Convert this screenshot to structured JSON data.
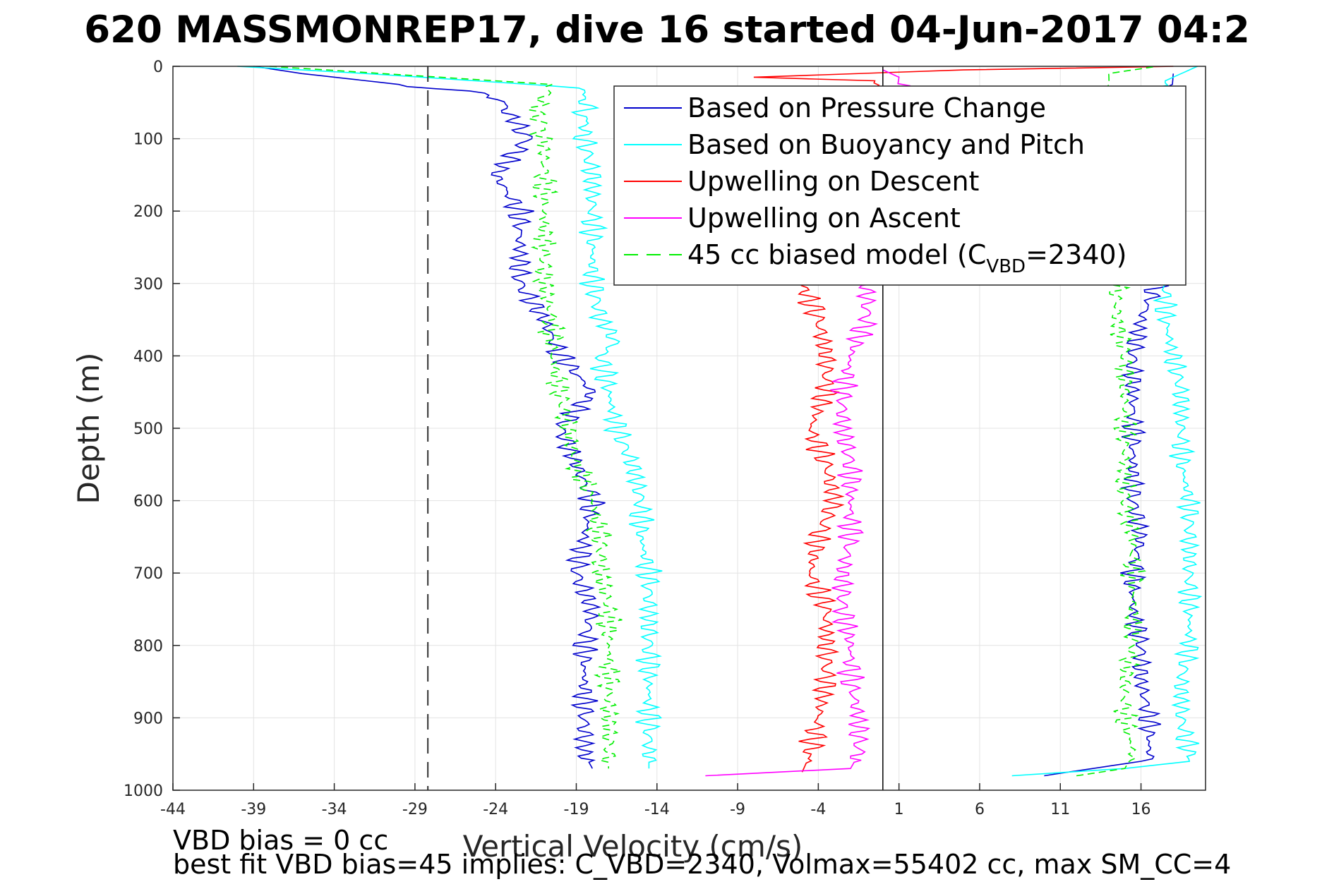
{
  "chart_data": {
    "type": "line",
    "title": "620 MASSMONREP17, dive 16 started 04-Jun-2017 04:2",
    "xlabel": "Vertical Velocity (cm/s)",
    "ylabel": "Depth (m)",
    "xlim": [
      -44,
      20
    ],
    "ylim": [
      0,
      1000
    ],
    "y_reversed": true,
    "grid": true,
    "legend_position": "top-right",
    "x_ticks": [
      "-44",
      "-39",
      "-34",
      "-29",
      "-24",
      "-19",
      "-14",
      "-9",
      "-4",
      "1",
      "6",
      "11",
      "16"
    ],
    "y_ticks": [
      "0",
      "100",
      "200",
      "300",
      "400",
      "500",
      "600",
      "700",
      "800",
      "900",
      "1000"
    ],
    "reference_lines": {
      "dashed_x": -28.2,
      "solid_x": 0
    },
    "series": [
      {
        "name": "Based on Pressure Change",
        "color": "#0000cc",
        "style": "solid",
        "descent_depth": [
          0,
          10,
          40,
          70,
          100,
          150,
          200,
          250,
          300,
          350,
          400,
          450,
          500,
          550,
          600,
          650,
          700,
          750,
          800,
          850,
          900,
          950,
          970
        ],
        "descent_value": [
          -39,
          -36,
          -24,
          -23,
          -22,
          -24,
          -22.5,
          -22.5,
          -22.5,
          -21,
          -20,
          -18,
          -20,
          -19,
          -18,
          -18.5,
          -19,
          -18,
          -18.5,
          -18.5,
          -18.5,
          -18.5,
          -18
        ],
        "ascent_depth": [
          980,
          960,
          950,
          900,
          850,
          800,
          750,
          700,
          650,
          600,
          550,
          500,
          450,
          400,
          350,
          300,
          10
        ],
        "ascent_value": [
          10,
          16,
          16.5,
          16.5,
          16,
          16,
          15.5,
          15.5,
          16,
          15.5,
          15.5,
          15.5,
          15.5,
          15.5,
          16,
          17,
          18
        ]
      },
      {
        "name": "Based on Buoyancy and Pitch",
        "color": "#00ffff",
        "style": "solid",
        "descent_depth": [
          0,
          10,
          30,
          100,
          150,
          200,
          250,
          300,
          350,
          380,
          400,
          450,
          500,
          550,
          600,
          650,
          700,
          750,
          800,
          850,
          900,
          950,
          970
        ],
        "descent_value": [
          -40,
          -32,
          -18.5,
          -18.5,
          -18,
          -18,
          -18,
          -18,
          -17.5,
          -16.5,
          -17.5,
          -17,
          -16.5,
          -15.5,
          -15,
          -15,
          -14.5,
          -14.5,
          -14.5,
          -14.5,
          -14.5,
          -14.5,
          -14.5
        ],
        "ascent_depth": [
          980,
          970,
          960,
          950,
          900,
          850,
          800,
          750,
          700,
          650,
          600,
          550,
          500,
          450,
          400,
          350,
          300,
          20,
          0
        ],
        "ascent_value": [
          8,
          15,
          19,
          19,
          18.5,
          18.5,
          19,
          19,
          19,
          19,
          19,
          18.5,
          18.5,
          18.5,
          18,
          17.5,
          17.5,
          17.5,
          19.5
        ]
      },
      {
        "name": "Upwelling on Descent",
        "color": "#ff0000",
        "style": "solid",
        "depth": [
          0,
          5,
          15,
          20,
          300,
          350,
          400,
          450,
          500,
          550,
          600,
          650,
          700,
          750,
          800,
          850,
          900,
          950,
          975
        ],
        "value": [
          18,
          5,
          -8,
          -0.5,
          -5,
          -4,
          -3.5,
          -3.5,
          -4.5,
          -3.5,
          -3,
          -4,
          -4.5,
          -3.5,
          -3.5,
          -3.5,
          -4,
          -4.5,
          -5
        ]
      },
      {
        "name": "Upwelling on Ascent",
        "color": "#ff00ff",
        "style": "solid",
        "depth": [
          980,
          970,
          950,
          900,
          850,
          800,
          750,
          700,
          650,
          600,
          550,
          500,
          450,
          400,
          350,
          300,
          15,
          5
        ],
        "value": [
          -11,
          -2,
          -1.5,
          -1.5,
          -2,
          -2,
          -2.5,
          -2.5,
          -2,
          -2,
          -2,
          -2.5,
          -2.5,
          -2,
          -1,
          -1,
          1,
          0
        ]
      },
      {
        "name": "45 cc biased model (C_VBD=2340)",
        "color": "#00ee00",
        "style": "dashed",
        "descent_depth": [
          0,
          10,
          25,
          60,
          100,
          150,
          200,
          250,
          300,
          350,
          400,
          450,
          500,
          550,
          600,
          650,
          700,
          750,
          800,
          850,
          900,
          950,
          970
        ],
        "descent_value": [
          -38,
          -31,
          -20.5,
          -21.5,
          -21,
          -21,
          -21,
          -21,
          -21,
          -20.5,
          -20.5,
          -20,
          -19.5,
          -19,
          -18,
          -17.5,
          -17.5,
          -17,
          -17,
          -17,
          -17,
          -17,
          -17
        ],
        "ascent_depth": [
          980,
          970,
          950,
          900,
          850,
          800,
          750,
          700,
          650,
          600,
          550,
          500,
          450,
          400,
          350,
          300,
          10,
          0
        ],
        "ascent_value": [
          12,
          15,
          15.5,
          15,
          15,
          15.5,
          15.5,
          15.5,
          15.5,
          15,
          15,
          15,
          15,
          15,
          14.5,
          14.5,
          14,
          17
        ]
      }
    ],
    "legend": [
      {
        "label": "Based on Pressure Change",
        "color": "#0000cc",
        "style": "solid"
      },
      {
        "label": "Based on Buoyancy and Pitch",
        "color": "#00ffff",
        "style": "solid"
      },
      {
        "label": "Upwelling on Descent",
        "color": "#ff0000",
        "style": "solid"
      },
      {
        "label": "Upwelling on Ascent",
        "color": "#ff00ff",
        "style": "solid"
      },
      {
        "label": "45 cc biased model (C",
        "label_sub": "VBD",
        "label_tail": "=2340)",
        "color": "#00ee00",
        "style": "dashed"
      }
    ],
    "footer_lines": [
      "VBD bias = 0 cc",
      "best fit VBD bias=45 implies: C_VBD=2340, Volmax=55402 cc, max SM_CC=4"
    ]
  }
}
